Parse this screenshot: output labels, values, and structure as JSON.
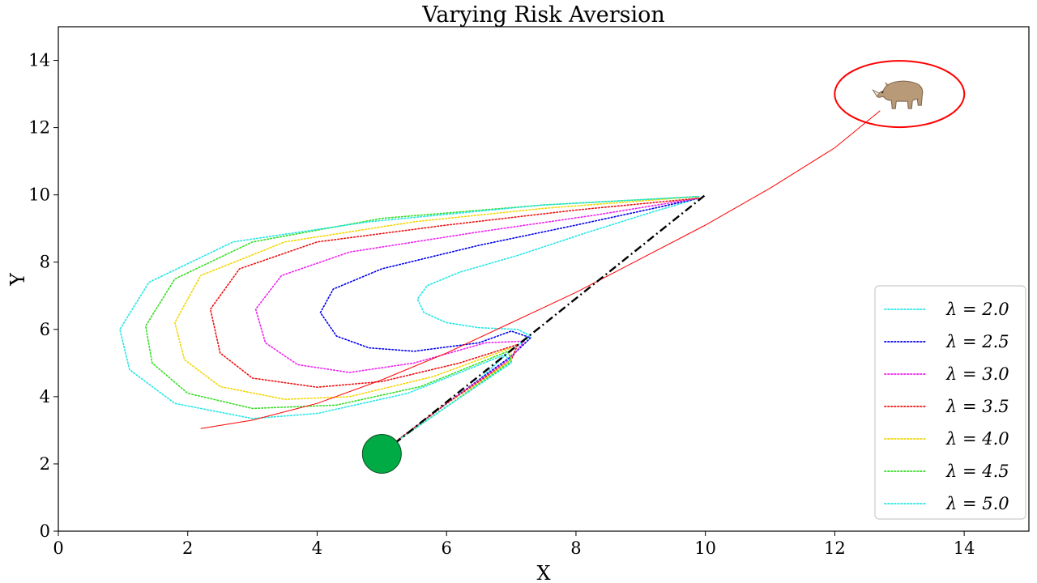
{
  "chart_data": {
    "type": "line",
    "title": "Varying Risk Aversion",
    "xlabel": "X",
    "ylabel": "Y",
    "xlim": [
      0,
      15
    ],
    "ylim": [
      0,
      15
    ],
    "xticks": [
      "0",
      "2",
      "4",
      "6",
      "8",
      "10",
      "12",
      "14"
    ],
    "yticks": [
      "0",
      "2",
      "4",
      "6",
      "8",
      "10",
      "12",
      "14"
    ],
    "grid": false,
    "legend_position": "lower-right",
    "start_marker": {
      "x": 5,
      "y": 2.3,
      "color": "#00aa44"
    },
    "target": {
      "x": 13,
      "y": 13,
      "icon": "rhino-icon",
      "ring_color": "#ff0000"
    },
    "direct_path": {
      "color": "#000000",
      "style": "dash-dot",
      "points": [
        [
          5,
          2.3
        ],
        [
          10,
          10
        ]
      ]
    },
    "target_trajectory": {
      "color": "#ff0000",
      "style": "solid",
      "points": [
        [
          2.2,
          3.05
        ],
        [
          3,
          3.3
        ],
        [
          4,
          3.8
        ],
        [
          5,
          4.5
        ],
        [
          6,
          5.3
        ],
        [
          7,
          6.2
        ],
        [
          8,
          7.1
        ],
        [
          9,
          8.1
        ],
        [
          10,
          9.1
        ],
        [
          11,
          10.2
        ],
        [
          12,
          11.4
        ],
        [
          12.7,
          12.5
        ]
      ]
    },
    "series": [
      {
        "name": "λ = 2.0",
        "legend_label": "λ = 2.0",
        "color": "#22e6e6",
        "points": [
          [
            5.1,
            2.5
          ],
          [
            5.8,
            3.5
          ],
          [
            6.5,
            4.5
          ],
          [
            7.0,
            5.4
          ],
          [
            7.3,
            5.8
          ],
          [
            7.1,
            6.0
          ],
          [
            6.5,
            6.05
          ],
          [
            6.0,
            6.2
          ],
          [
            5.65,
            6.5
          ],
          [
            5.55,
            6.9
          ],
          [
            5.7,
            7.3
          ],
          [
            6.2,
            7.7
          ],
          [
            7.1,
            8.2
          ],
          [
            8.2,
            8.9
          ],
          [
            9.2,
            9.5
          ],
          [
            9.9,
            9.9
          ]
        ]
      },
      {
        "name": "λ = 2.5",
        "legend_label": "λ = 2.5",
        "color": "#0000ee",
        "points": [
          [
            5.1,
            2.5
          ],
          [
            6.0,
            3.8
          ],
          [
            7.0,
            5.2
          ],
          [
            7.3,
            5.75
          ],
          [
            7.0,
            5.95
          ],
          [
            6.5,
            5.6
          ],
          [
            5.5,
            5.35
          ],
          [
            4.8,
            5.45
          ],
          [
            4.3,
            5.8
          ],
          [
            4.05,
            6.5
          ],
          [
            4.25,
            7.2
          ],
          [
            5.0,
            7.8
          ],
          [
            6.5,
            8.5
          ],
          [
            8.0,
            9.1
          ],
          [
            9.2,
            9.6
          ],
          [
            9.9,
            9.9
          ]
        ]
      },
      {
        "name": "λ = 3.0",
        "legend_label": "λ = 3.0",
        "color": "#ee22ee",
        "points": [
          [
            5.1,
            2.5
          ],
          [
            6.0,
            3.8
          ],
          [
            7.0,
            5.15
          ],
          [
            7.2,
            5.65
          ],
          [
            6.6,
            5.6
          ],
          [
            5.5,
            5.0
          ],
          [
            4.5,
            4.72
          ],
          [
            3.7,
            4.95
          ],
          [
            3.2,
            5.6
          ],
          [
            3.05,
            6.6
          ],
          [
            3.45,
            7.6
          ],
          [
            4.5,
            8.3
          ],
          [
            6.5,
            8.9
          ],
          [
            8.3,
            9.4
          ],
          [
            9.9,
            9.9
          ]
        ]
      },
      {
        "name": "λ = 3.5",
        "legend_label": "λ = 3.5",
        "color": "#ee1111",
        "points": [
          [
            5.1,
            2.5
          ],
          [
            6.0,
            3.8
          ],
          [
            7.0,
            5.1
          ],
          [
            7.1,
            5.55
          ],
          [
            6.2,
            5.0
          ],
          [
            5.0,
            4.45
          ],
          [
            4.0,
            4.28
          ],
          [
            3.0,
            4.55
          ],
          [
            2.5,
            5.3
          ],
          [
            2.35,
            6.6
          ],
          [
            2.8,
            7.8
          ],
          [
            4.0,
            8.6
          ],
          [
            6.0,
            9.1
          ],
          [
            8.0,
            9.55
          ],
          [
            9.9,
            9.9
          ]
        ]
      },
      {
        "name": "λ = 4.0",
        "legend_label": "λ = 4.0",
        "color": "#f2d600",
        "points": [
          [
            5.1,
            2.5
          ],
          [
            6.0,
            3.7
          ],
          [
            7.0,
            5.1
          ],
          [
            7.0,
            5.45
          ],
          [
            5.8,
            4.6
          ],
          [
            4.5,
            4.0
          ],
          [
            3.5,
            3.92
          ],
          [
            2.5,
            4.3
          ],
          [
            1.95,
            5.1
          ],
          [
            1.8,
            6.2
          ],
          [
            2.2,
            7.6
          ],
          [
            3.5,
            8.6
          ],
          [
            5.5,
            9.2
          ],
          [
            7.5,
            9.6
          ],
          [
            9.9,
            9.95
          ]
        ]
      },
      {
        "name": "λ = 4.5",
        "legend_label": "λ = 4.5",
        "color": "#33dd22",
        "points": [
          [
            5.1,
            2.5
          ],
          [
            6.0,
            3.7
          ],
          [
            7.0,
            5.05
          ],
          [
            6.95,
            5.35
          ],
          [
            5.6,
            4.3
          ],
          [
            4.3,
            3.75
          ],
          [
            3.0,
            3.65
          ],
          [
            2.0,
            4.1
          ],
          [
            1.45,
            5.0
          ],
          [
            1.35,
            6.1
          ],
          [
            1.8,
            7.5
          ],
          [
            3.0,
            8.6
          ],
          [
            5.0,
            9.3
          ],
          [
            7.5,
            9.7
          ],
          [
            9.9,
            9.95
          ]
        ]
      },
      {
        "name": "λ = 5.0",
        "legend_label": "λ = 5.0",
        "color": "#22e6e6",
        "points": [
          [
            5.1,
            2.5
          ],
          [
            6.0,
            3.7
          ],
          [
            7.0,
            5.0
          ],
          [
            6.9,
            5.25
          ],
          [
            5.4,
            4.1
          ],
          [
            4.0,
            3.5
          ],
          [
            3.0,
            3.35
          ],
          [
            1.8,
            3.8
          ],
          [
            1.1,
            4.8
          ],
          [
            0.95,
            6.0
          ],
          [
            1.4,
            7.4
          ],
          [
            2.7,
            8.6
          ],
          [
            4.8,
            9.2
          ],
          [
            7.5,
            9.7
          ],
          [
            9.9,
            9.95
          ]
        ]
      }
    ]
  }
}
